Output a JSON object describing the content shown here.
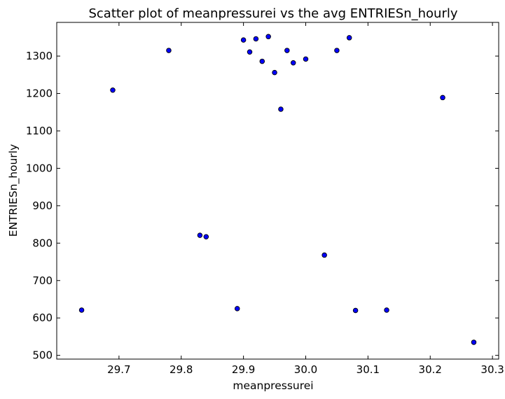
{
  "chart_data": {
    "type": "scatter",
    "title": "Scatter plot of meanpressurei vs the avg ENTRIESn_hourly",
    "xlabel": "meanpressurei",
    "ylabel": "ENTRIESn_hourly",
    "xlim": [
      29.6,
      30.31
    ],
    "ylim": [
      490,
      1390
    ],
    "xticks": [
      "29.7",
      "29.8",
      "29.9",
      "30.0",
      "30.1",
      "30.2",
      "30.3"
    ],
    "yticks": [
      "500",
      "600",
      "700",
      "800",
      "900",
      "1000",
      "1100",
      "1200",
      "1300"
    ],
    "grid": false,
    "marker_color": "#0000ff",
    "points": [
      {
        "x": 29.64,
        "y": 621
      },
      {
        "x": 29.69,
        "y": 1209
      },
      {
        "x": 29.78,
        "y": 1315
      },
      {
        "x": 29.83,
        "y": 821
      },
      {
        "x": 29.84,
        "y": 817
      },
      {
        "x": 29.89,
        "y": 625
      },
      {
        "x": 29.9,
        "y": 1343
      },
      {
        "x": 29.91,
        "y": 1311
      },
      {
        "x": 29.92,
        "y": 1346
      },
      {
        "x": 29.93,
        "y": 1286
      },
      {
        "x": 29.94,
        "y": 1352
      },
      {
        "x": 29.95,
        "y": 1256
      },
      {
        "x": 29.96,
        "y": 1158
      },
      {
        "x": 29.97,
        "y": 1315
      },
      {
        "x": 29.98,
        "y": 1282
      },
      {
        "x": 30.0,
        "y": 1292
      },
      {
        "x": 30.03,
        "y": 768
      },
      {
        "x": 30.05,
        "y": 1315
      },
      {
        "x": 30.07,
        "y": 1349
      },
      {
        "x": 30.08,
        "y": 620
      },
      {
        "x": 30.13,
        "y": 621
      },
      {
        "x": 30.22,
        "y": 1189
      },
      {
        "x": 30.27,
        "y": 535
      }
    ]
  }
}
